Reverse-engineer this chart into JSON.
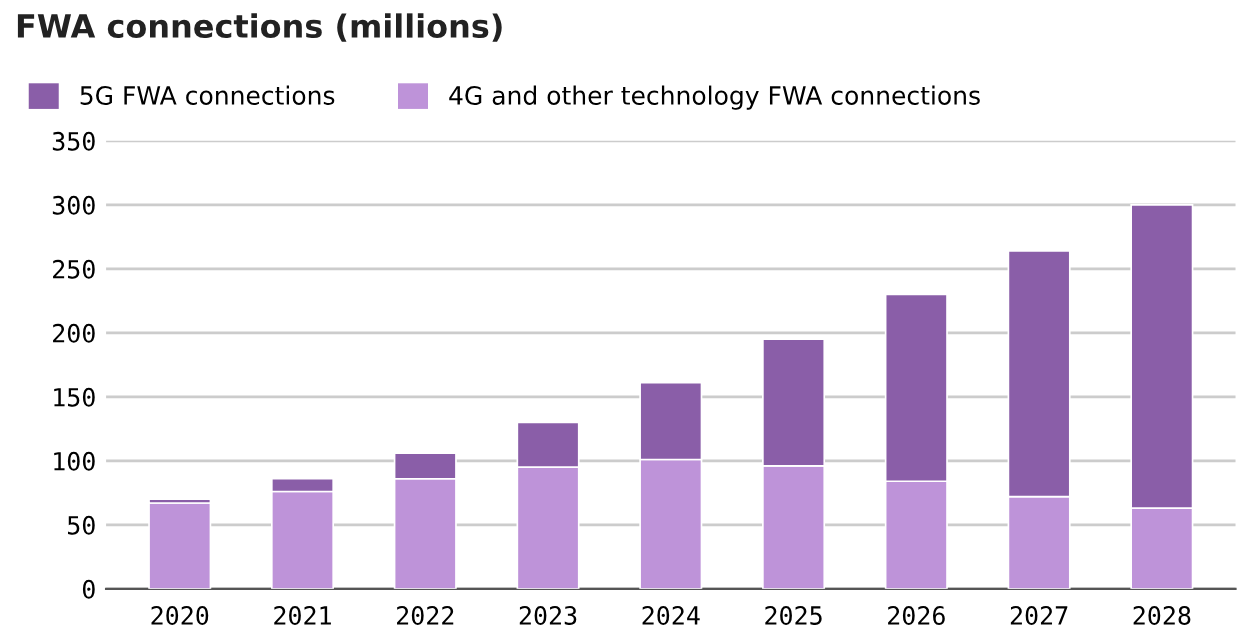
{
  "chart_data": {
    "type": "bar",
    "title": "FWA connections (millions)",
    "stacked": true,
    "categories": [
      "2020",
      "2021",
      "2022",
      "2023",
      "2024",
      "2025",
      "2026",
      "2027",
      "2028"
    ],
    "series": [
      {
        "name": "4G and other technology FWA connections",
        "color": "#be93d9",
        "values": [
          67,
          76,
          86,
          95,
          101,
          96,
          84,
          72,
          63
        ]
      },
      {
        "name": "5G FWA connections",
        "color": "#8a5ea8",
        "values": [
          3,
          10,
          20,
          35,
          60,
          99,
          146,
          192,
          237
        ]
      }
    ],
    "ylim": [
      0,
      350
    ],
    "yticks": [
      0,
      50,
      100,
      150,
      200,
      250,
      300,
      350
    ],
    "grid": "y",
    "legend": "top left"
  }
}
